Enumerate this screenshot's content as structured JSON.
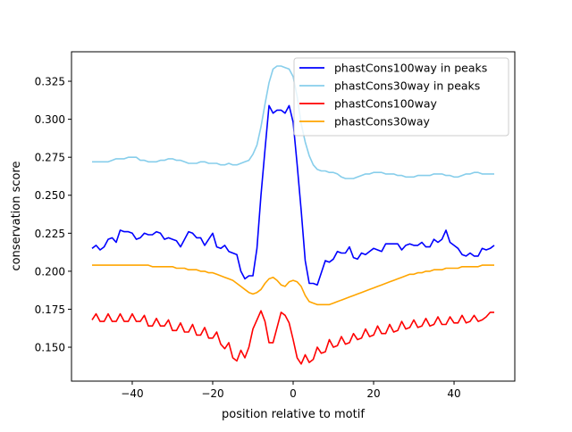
{
  "chart_data": {
    "type": "line",
    "title": "",
    "xlabel": "position relative to motif",
    "ylabel": "conservation score",
    "xlim": [
      -55.1,
      55.1
    ],
    "ylim": [
      0.1277,
      0.3444
    ],
    "xticks": [
      -40,
      -20,
      0,
      20,
      40
    ],
    "xtick_labels": [
      "−40",
      "−20",
      "0",
      "20",
      "40"
    ],
    "yticks": [
      0.15,
      0.175,
      0.2,
      0.225,
      0.25,
      0.275,
      0.3,
      0.325
    ],
    "ytick_labels": [
      "0.150",
      "0.175",
      "0.200",
      "0.225",
      "0.250",
      "0.275",
      "0.300",
      "0.325"
    ],
    "grid": false,
    "legend_position": "top-right",
    "x_start": -50,
    "x_step": 1,
    "series": [
      {
        "name": "phastCons100way in peaks",
        "color": "#0000ff",
        "values": [
          0.215,
          0.217,
          0.214,
          0.216,
          0.221,
          0.222,
          0.219,
          0.227,
          0.226,
          0.226,
          0.225,
          0.221,
          0.222,
          0.225,
          0.224,
          0.224,
          0.226,
          0.225,
          0.221,
          0.222,
          0.221,
          0.22,
          0.216,
          0.221,
          0.226,
          0.225,
          0.222,
          0.222,
          0.217,
          0.221,
          0.225,
          0.216,
          0.215,
          0.217,
          0.213,
          0.212,
          0.211,
          0.2,
          0.195,
          0.197,
          0.197,
          0.215,
          0.25,
          0.28,
          0.309,
          0.304,
          0.306,
          0.306,
          0.304,
          0.309,
          0.298,
          0.27,
          0.24,
          0.207,
          0.192,
          0.192,
          0.191,
          0.199,
          0.207,
          0.206,
          0.208,
          0.213,
          0.212,
          0.212,
          0.216,
          0.209,
          0.208,
          0.212,
          0.211,
          0.213,
          0.215,
          0.214,
          0.213,
          0.218,
          0.218,
          0.218,
          0.218,
          0.214,
          0.217,
          0.218,
          0.217,
          0.217,
          0.219,
          0.216,
          0.216,
          0.221,
          0.219,
          0.221,
          0.227,
          0.219,
          0.217,
          0.215,
          0.211,
          0.21,
          0.212,
          0.21,
          0.21,
          0.215,
          0.214,
          0.215,
          0.217
        ]
      },
      {
        "name": "phastCons30way in peaks",
        "color": "#87ceeb",
        "values": [
          0.272,
          0.272,
          0.272,
          0.272,
          0.272,
          0.273,
          0.274,
          0.274,
          0.274,
          0.275,
          0.275,
          0.275,
          0.273,
          0.273,
          0.272,
          0.272,
          0.272,
          0.273,
          0.273,
          0.274,
          0.274,
          0.273,
          0.273,
          0.272,
          0.271,
          0.271,
          0.271,
          0.272,
          0.272,
          0.271,
          0.271,
          0.271,
          0.27,
          0.27,
          0.271,
          0.27,
          0.27,
          0.271,
          0.272,
          0.273,
          0.277,
          0.283,
          0.295,
          0.31,
          0.324,
          0.333,
          0.335,
          0.335,
          0.334,
          0.333,
          0.328,
          0.315,
          0.297,
          0.285,
          0.276,
          0.27,
          0.267,
          0.266,
          0.266,
          0.265,
          0.265,
          0.264,
          0.262,
          0.261,
          0.261,
          0.261,
          0.262,
          0.263,
          0.264,
          0.264,
          0.265,
          0.265,
          0.265,
          0.264,
          0.264,
          0.264,
          0.263,
          0.263,
          0.262,
          0.262,
          0.262,
          0.263,
          0.263,
          0.263,
          0.263,
          0.264,
          0.264,
          0.264,
          0.263,
          0.263,
          0.262,
          0.262,
          0.263,
          0.264,
          0.264,
          0.265,
          0.265,
          0.264,
          0.264,
          0.264,
          0.264
        ]
      },
      {
        "name": "phastCons100way",
        "color": "#ff0000",
        "values": [
          0.168,
          0.172,
          0.167,
          0.167,
          0.172,
          0.167,
          0.167,
          0.172,
          0.167,
          0.167,
          0.172,
          0.167,
          0.167,
          0.171,
          0.164,
          0.164,
          0.169,
          0.164,
          0.164,
          0.168,
          0.161,
          0.161,
          0.166,
          0.16,
          0.16,
          0.165,
          0.158,
          0.158,
          0.163,
          0.156,
          0.156,
          0.16,
          0.152,
          0.149,
          0.153,
          0.143,
          0.141,
          0.148,
          0.143,
          0.15,
          0.162,
          0.168,
          0.174,
          0.167,
          0.153,
          0.153,
          0.163,
          0.173,
          0.171,
          0.166,
          0.155,
          0.143,
          0.139,
          0.145,
          0.14,
          0.142,
          0.15,
          0.146,
          0.147,
          0.155,
          0.15,
          0.151,
          0.157,
          0.152,
          0.153,
          0.159,
          0.155,
          0.156,
          0.162,
          0.157,
          0.158,
          0.164,
          0.159,
          0.159,
          0.165,
          0.16,
          0.161,
          0.167,
          0.162,
          0.163,
          0.168,
          0.163,
          0.164,
          0.169,
          0.164,
          0.165,
          0.17,
          0.165,
          0.165,
          0.17,
          0.166,
          0.166,
          0.171,
          0.166,
          0.167,
          0.171,
          0.167,
          0.168,
          0.17,
          0.173,
          0.173
        ]
      },
      {
        "name": "phastCons30way",
        "color": "#ffa500",
        "values": [
          0.204,
          0.204,
          0.204,
          0.204,
          0.204,
          0.204,
          0.204,
          0.204,
          0.204,
          0.204,
          0.204,
          0.204,
          0.204,
          0.204,
          0.204,
          0.203,
          0.203,
          0.203,
          0.203,
          0.203,
          0.203,
          0.202,
          0.202,
          0.202,
          0.201,
          0.201,
          0.201,
          0.2,
          0.2,
          0.199,
          0.199,
          0.198,
          0.197,
          0.196,
          0.195,
          0.194,
          0.192,
          0.19,
          0.188,
          0.186,
          0.185,
          0.186,
          0.188,
          0.192,
          0.195,
          0.196,
          0.194,
          0.191,
          0.19,
          0.193,
          0.194,
          0.193,
          0.19,
          0.184,
          0.18,
          0.179,
          0.178,
          0.178,
          0.178,
          0.178,
          0.179,
          0.18,
          0.181,
          0.182,
          0.183,
          0.184,
          0.185,
          0.186,
          0.187,
          0.188,
          0.189,
          0.19,
          0.191,
          0.192,
          0.193,
          0.194,
          0.195,
          0.196,
          0.197,
          0.198,
          0.198,
          0.199,
          0.199,
          0.2,
          0.2,
          0.201,
          0.201,
          0.201,
          0.202,
          0.202,
          0.202,
          0.202,
          0.203,
          0.203,
          0.203,
          0.203,
          0.203,
          0.204,
          0.204,
          0.204,
          0.204
        ]
      }
    ]
  }
}
